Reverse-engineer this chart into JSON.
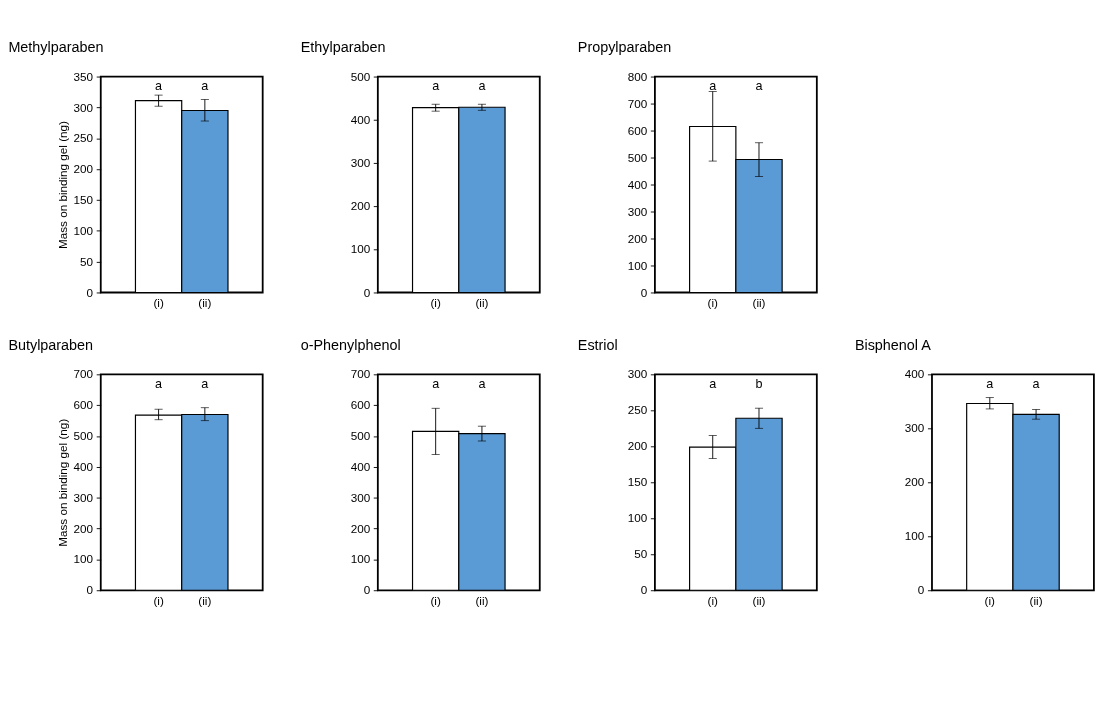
{
  "chart_data": [
    {
      "type": "bar",
      "title": "Methylparaben",
      "ylabel": "Mass on binding gel (ng)",
      "categories": [
        "(i)",
        "(ii)"
      ],
      "values": [
        311,
        295
      ],
      "colors": [
        "#ffffff",
        "#5b9bd5"
      ],
      "errors": [
        [
          302,
          320
        ],
        [
          278,
          313
        ]
      ],
      "ylim": [
        0,
        350
      ],
      "yticks": [
        0,
        50,
        100,
        150,
        200,
        250,
        300,
        350
      ],
      "annotations": [
        "a",
        "a"
      ]
    },
    {
      "type": "bar",
      "title": "Ethylparaben",
      "categories": [
        "(i)",
        "(ii)"
      ],
      "values": [
        428,
        429
      ],
      "colors": [
        "#ffffff",
        "#5b9bd5"
      ],
      "errors": [
        [
          420,
          436
        ],
        [
          422,
          436
        ]
      ],
      "ylim": [
        0,
        500
      ],
      "yticks": [
        0,
        100,
        200,
        300,
        400,
        500
      ],
      "annotations": [
        "a",
        "a"
      ]
    },
    {
      "type": "bar",
      "title": "Propylparaben",
      "categories": [
        "(i)",
        "(ii)"
      ],
      "values": [
        615,
        493
      ],
      "colors": [
        "#ffffff",
        "#5b9bd5"
      ],
      "errors": [
        [
          487,
          745
        ],
        [
          430,
          555
        ]
      ],
      "ylim": [
        0,
        800
      ],
      "yticks": [
        0,
        100,
        200,
        300,
        400,
        500,
        600,
        700,
        800
      ],
      "annotations": [
        "a",
        "a"
      ]
    },
    {
      "type": "bar",
      "title": "Butylparaben",
      "ylabel": "Mass on binding gel (ng)",
      "categories": [
        "(i)",
        "(ii)"
      ],
      "values": [
        568,
        570
      ],
      "colors": [
        "#ffffff",
        "#5b9bd5"
      ],
      "errors": [
        [
          553,
          587
        ],
        [
          550,
          592
        ]
      ],
      "ylim": [
        0,
        700
      ],
      "yticks": [
        0,
        100,
        200,
        300,
        400,
        500,
        600,
        700
      ],
      "annotations": [
        "a",
        "a"
      ]
    },
    {
      "type": "bar",
      "title": "o-Phenylphenol",
      "categories": [
        "(i)",
        "(ii)"
      ],
      "values": [
        515,
        508
      ],
      "colors": [
        "#ffffff",
        "#5b9bd5"
      ],
      "errors": [
        [
          440,
          590
        ],
        [
          484,
          532
        ]
      ],
      "ylim": [
        0,
        700
      ],
      "yticks": [
        0,
        100,
        200,
        300,
        400,
        500,
        600,
        700
      ],
      "annotations": [
        "a",
        "a"
      ]
    },
    {
      "type": "bar",
      "title": "Estriol",
      "categories": [
        "(i)",
        "(ii)"
      ],
      "values": [
        199,
        239
      ],
      "colors": [
        "#ffffff",
        "#5b9bd5"
      ],
      "errors": [
        [
          183,
          215
        ],
        [
          225,
          253
        ]
      ],
      "ylim": [
        0,
        300
      ],
      "yticks": [
        0,
        50,
        100,
        150,
        200,
        250,
        300
      ],
      "annotations": [
        "a",
        "b"
      ]
    },
    {
      "type": "bar",
      "title": "Bisphenol A",
      "categories": [
        "(i)",
        "(ii)"
      ],
      "values": [
        346,
        326
      ],
      "colors": [
        "#ffffff",
        "#5b9bd5"
      ],
      "errors": [
        [
          336,
          357
        ],
        [
          317,
          335
        ]
      ],
      "ylim": [
        0,
        400
      ],
      "yticks": [
        0,
        100,
        200,
        300,
        400
      ],
      "annotations": [
        "a",
        "a"
      ]
    }
  ]
}
